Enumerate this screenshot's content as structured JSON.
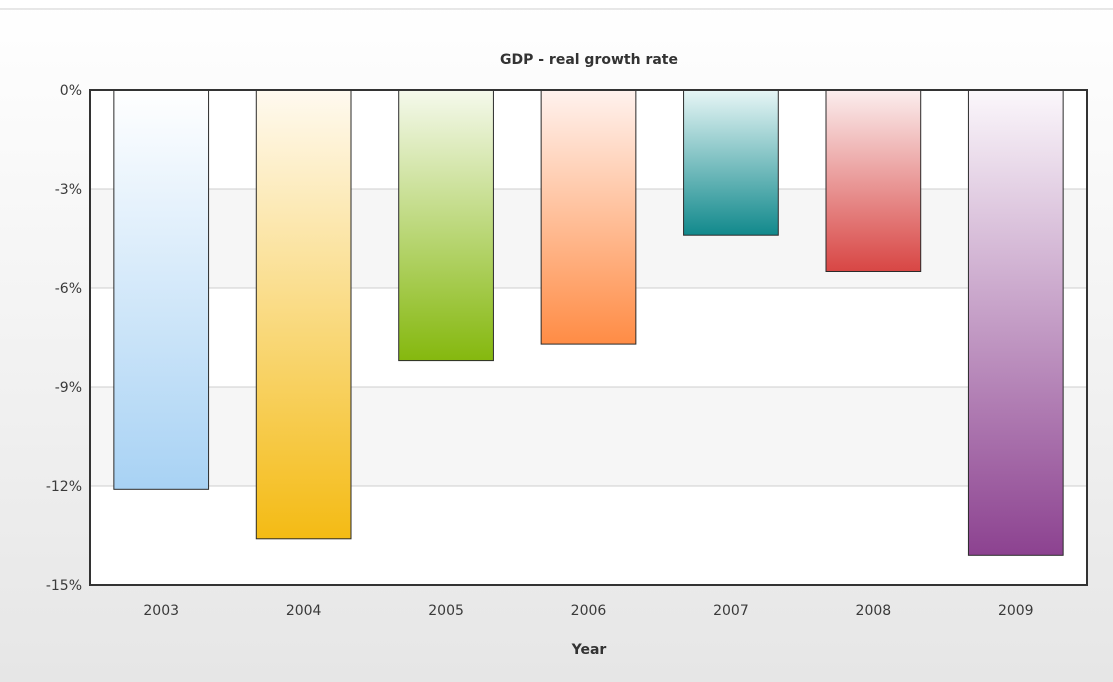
{
  "chart_data": {
    "type": "bar",
    "title": "GDP - real growth rate",
    "xlabel": "Year",
    "ylabel": "",
    "categories": [
      "2003",
      "2004",
      "2005",
      "2006",
      "2007",
      "2008",
      "2009"
    ],
    "values": [
      -12.1,
      -13.6,
      -8.2,
      -7.7,
      -4.4,
      -5.5,
      -14.1
    ],
    "ylim": [
      -15,
      0
    ],
    "yticks": [
      0,
      -3,
      -6,
      -9,
      -12,
      -15
    ],
    "ytick_labels": [
      "0%",
      "-3%",
      "-6%",
      "-9%",
      "-12%",
      "-15%"
    ],
    "grid": true,
    "legend": "none",
    "bar_colors": [
      [
        "#ffffff",
        "#a8d2f4"
      ],
      [
        "#fffaf0",
        "#f4bb14"
      ],
      [
        "#f5f9ec",
        "#85b80e"
      ],
      [
        "#fff2ee",
        "#ff8c45"
      ],
      [
        "#e7f6f6",
        "#11898c"
      ],
      [
        "#fbeeee",
        "#d84644"
      ],
      [
        "#fbf7fb",
        "#8c4290"
      ]
    ],
    "colors": {
      "background_top": "#ffffff",
      "background_bottom": "#e6e6e6",
      "plot_band": "#f6f6f6",
      "plot_plain": "#ffffff",
      "gridline": "#cfcfcf",
      "axis_line": "#333333",
      "bar_border": "#2a2a2a"
    }
  }
}
